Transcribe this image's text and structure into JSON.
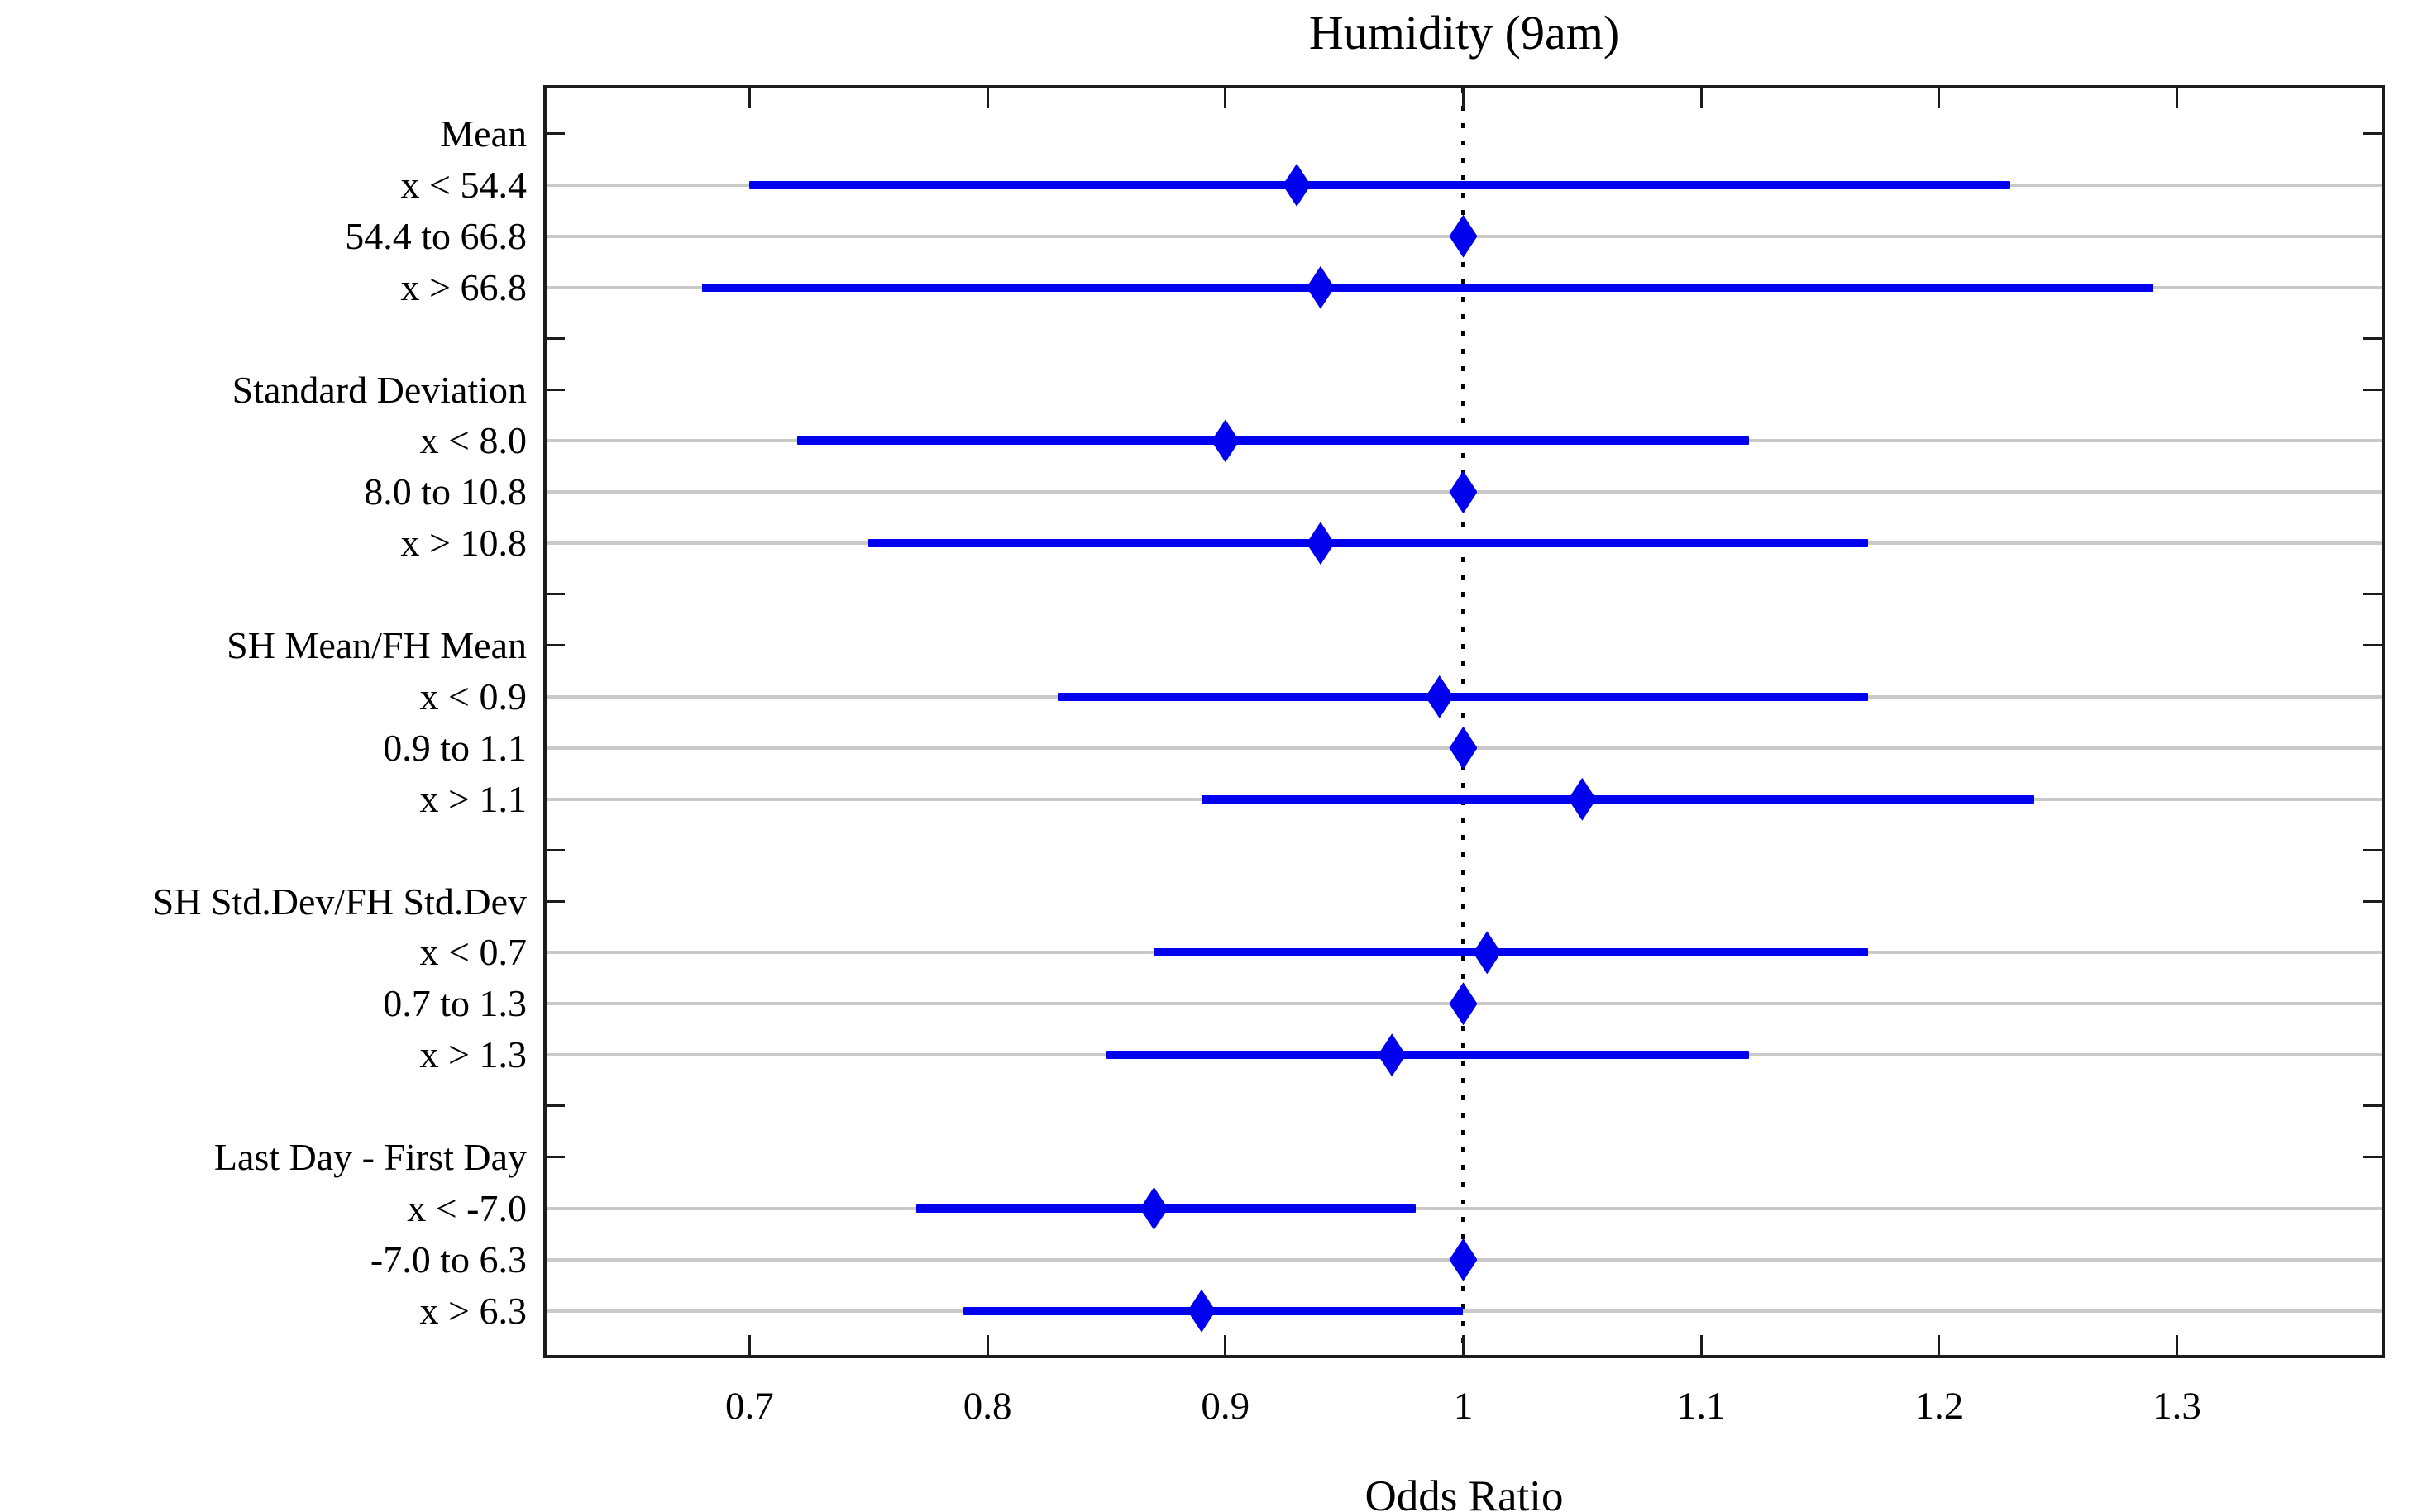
{
  "title": "Humidity (9am)",
  "chart_data": {
    "type": "forest",
    "title": "Humidity (9am)",
    "xlabel": "Odds Ratio",
    "x_ticks": [
      0.7,
      0.8,
      0.9,
      1.0,
      1.1,
      1.2,
      1.3
    ],
    "x_tick_labels": [
      "0.7",
      "0.8",
      "0.9",
      "1",
      "1.1",
      "1.2",
      "1.3"
    ],
    "xlim": [
      0.6133,
      1.3874
    ],
    "reference_line": 1.0,
    "grid": true,
    "marker": "diamond",
    "groups": [
      {
        "label": "Mean",
        "items": [
          {
            "label": "x < 54.4",
            "or": 0.93,
            "lo": 0.7,
            "hi": 1.23
          },
          {
            "label": "54.4 to 66.8",
            "or": 1.0,
            "lo": 1.0,
            "hi": 1.0
          },
          {
            "label": "x > 66.8",
            "or": 0.94,
            "lo": 0.68,
            "hi": 1.29
          }
        ]
      },
      {
        "label": "Standard Deviation",
        "items": [
          {
            "label": "x < 8.0",
            "or": 0.9,
            "lo": 0.72,
            "hi": 1.12
          },
          {
            "label": "8.0 to 10.8",
            "or": 1.0,
            "lo": 1.0,
            "hi": 1.0
          },
          {
            "label": "x > 10.8",
            "or": 0.94,
            "lo": 0.75,
            "hi": 1.17
          }
        ]
      },
      {
        "label": "SH Mean/FH Mean",
        "items": [
          {
            "label": "x < 0.9",
            "or": 0.99,
            "lo": 0.83,
            "hi": 1.17
          },
          {
            "label": "0.9 to 1.1",
            "or": 1.0,
            "lo": 1.0,
            "hi": 1.0
          },
          {
            "label": "x > 1.1",
            "or": 1.05,
            "lo": 0.89,
            "hi": 1.24
          }
        ]
      },
      {
        "label": "SH Std.Dev/FH Std.Dev",
        "items": [
          {
            "label": "x < 0.7",
            "or": 1.01,
            "lo": 0.87,
            "hi": 1.17
          },
          {
            "label": "0.7 to 1.3",
            "or": 1.0,
            "lo": 1.0,
            "hi": 1.0
          },
          {
            "label": "x > 1.3",
            "or": 0.97,
            "lo": 0.85,
            "hi": 1.12
          }
        ]
      },
      {
        "label": "Last Day - First Day",
        "items": [
          {
            "label": "x < -7.0",
            "or": 0.87,
            "lo": 0.77,
            "hi": 0.98
          },
          {
            "label": "-7.0 to 6.3",
            "or": 1.0,
            "lo": 1.0,
            "hi": 1.0
          },
          {
            "label": "x > 6.3",
            "or": 0.89,
            "lo": 0.79,
            "hi": 1.0
          }
        ]
      }
    ],
    "colors": {
      "marker": "#0000ee",
      "grid": "#c9c9c9",
      "frame": "#1c1c1c",
      "reference": "#000000",
      "background": "#ffffff",
      "text": "#000000"
    }
  }
}
